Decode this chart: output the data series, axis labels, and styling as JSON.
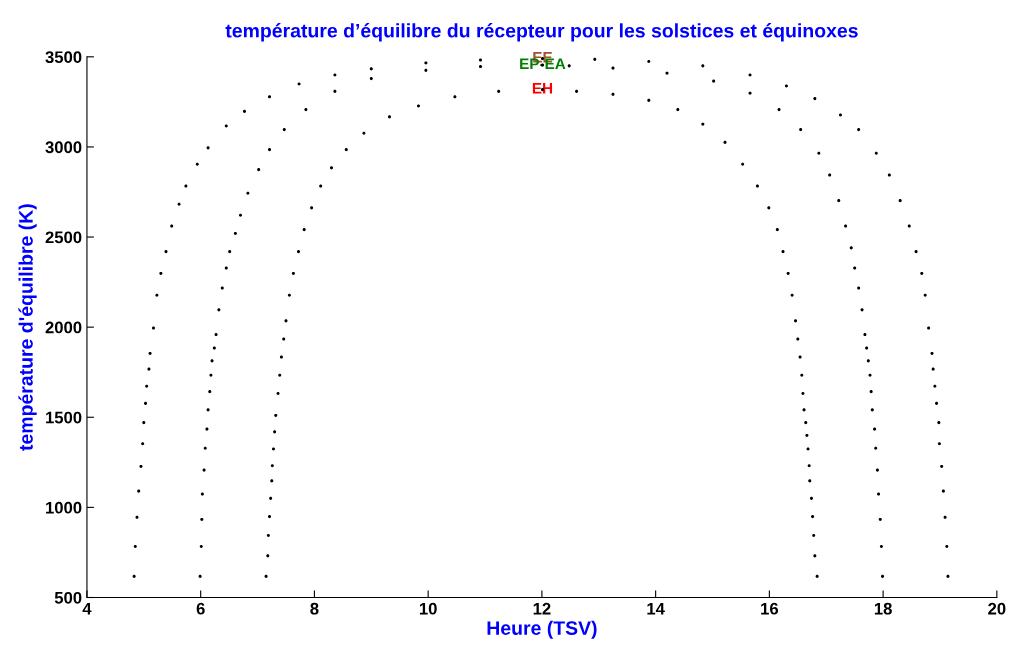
{
  "chart_data": {
    "type": "scatter",
    "title": "température d’équilibre du récepteur pour les solstices et équinoxes",
    "xlabel": "Heure (TSV)",
    "ylabel": "température d'équilibre (K)",
    "xlim": [
      4,
      20
    ],
    "xticks": [
      4,
      6,
      8,
      10,
      12,
      14,
      16,
      18,
      20
    ],
    "ylim": [
      500,
      3500
    ],
    "yticks": [
      500,
      1000,
      1500,
      2000,
      2500,
      3000,
      3500
    ],
    "grid": false,
    "legend": false,
    "marker": "circle",
    "series": [
      {
        "name": "EE",
        "color": "#000000",
        "x": [
          4.83,
          4.85,
          4.88,
          4.91,
          4.95,
          4.98,
          5.0,
          5.03,
          5.05,
          5.09,
          5.11,
          5.17,
          5.23,
          5.3,
          5.39,
          5.49,
          5.62,
          5.74,
          5.94,
          6.13,
          6.45,
          6.77,
          7.21,
          7.73,
          8.36,
          9.0,
          9.96,
          10.92,
          12.01,
          12.93,
          13.88,
          14.83,
          15.66,
          16.3,
          16.8,
          17.25,
          17.57,
          17.88,
          18.11,
          18.3,
          18.46,
          18.58,
          18.68,
          18.74,
          18.8,
          18.86,
          18.88,
          18.91,
          18.94,
          18.98,
          18.99,
          19.03,
          19.06,
          19.09,
          19.12,
          19.14
        ],
        "values": [
          617,
          783,
          945,
          1090,
          1227,
          1353,
          1470,
          1577,
          1672,
          1767,
          1854,
          1995,
          2177,
          2298,
          2419,
          2561,
          2682,
          2783,
          2904,
          2995,
          3116,
          3197,
          3278,
          3349,
          3399,
          3433,
          3466,
          3482,
          3490,
          3486,
          3474,
          3450,
          3399,
          3338,
          3268,
          3177,
          3096,
          2965,
          2844,
          2702,
          2561,
          2419,
          2298,
          2177,
          1995,
          1854,
          1767,
          1672,
          1577,
          1470,
          1353,
          1227,
          1090,
          945,
          783,
          617
        ]
      },
      {
        "name": "EP-EA",
        "color": "#000000",
        "x": [
          5.99,
          6.01,
          6.02,
          6.03,
          6.06,
          6.08,
          6.11,
          6.13,
          6.16,
          6.18,
          6.2,
          6.24,
          6.27,
          6.32,
          6.38,
          6.45,
          6.51,
          6.61,
          6.7,
          6.83,
          7.02,
          7.21,
          7.47,
          7.85,
          8.36,
          9.0,
          9.96,
          10.92,
          12.01,
          12.48,
          13.25,
          14.2,
          15.02,
          15.66,
          16.17,
          16.55,
          16.87,
          17.06,
          17.22,
          17.34,
          17.44,
          17.5,
          17.57,
          17.63,
          17.68,
          17.71,
          17.74,
          17.77,
          17.79,
          17.81,
          17.85,
          17.87,
          17.9,
          17.92,
          17.95,
          17.97,
          17.99
        ],
        "values": [
          617,
          783,
          933,
          1074,
          1207,
          1328,
          1434,
          1541,
          1642,
          1733,
          1813,
          1884,
          1959,
          2096,
          2217,
          2328,
          2419,
          2520,
          2621,
          2743,
          2874,
          2985,
          3096,
          3207,
          3308,
          3379,
          3425,
          3446,
          3454,
          3450,
          3437,
          3409,
          3365,
          3298,
          3207,
          3096,
          2965,
          2844,
          2702,
          2561,
          2440,
          2328,
          2217,
          2096,
          1959,
          1884,
          1813,
          1733,
          1642,
          1541,
          1434,
          1328,
          1207,
          1074,
          933,
          783,
          617
        ]
      },
      {
        "name": "EH",
        "color": "#000000",
        "x": [
          7.15,
          7.18,
          7.19,
          7.21,
          7.23,
          7.25,
          7.26,
          7.28,
          7.3,
          7.32,
          7.36,
          7.39,
          7.42,
          7.46,
          7.5,
          7.56,
          7.63,
          7.72,
          7.82,
          7.95,
          8.11,
          8.3,
          8.56,
          8.87,
          9.32,
          9.83,
          10.47,
          11.24,
          12.01,
          12.61,
          13.25,
          13.88,
          14.39,
          14.83,
          15.22,
          15.53,
          15.79,
          15.99,
          16.14,
          16.24,
          16.33,
          16.4,
          16.46,
          16.5,
          16.54,
          16.57,
          16.59,
          16.61,
          16.64,
          16.66,
          16.68,
          16.7,
          16.71,
          16.74,
          16.76,
          16.78,
          16.8,
          16.84
        ],
        "values": [
          617,
          731,
          844,
          949,
          1050,
          1147,
          1231,
          1324,
          1419,
          1510,
          1632,
          1733,
          1834,
          1934,
          2035,
          2177,
          2298,
          2419,
          2541,
          2662,
          2783,
          2884,
          2985,
          3076,
          3167,
          3227,
          3278,
          3308,
          3318,
          3308,
          3292,
          3258,
          3207,
          3126,
          3025,
          2904,
          2783,
          2662,
          2541,
          2419,
          2298,
          2177,
          2035,
          1934,
          1834,
          1733,
          1632,
          1541,
          1470,
          1399,
          1324,
          1231,
          1147,
          1050,
          949,
          844,
          731,
          617
        ]
      }
    ]
  }
}
